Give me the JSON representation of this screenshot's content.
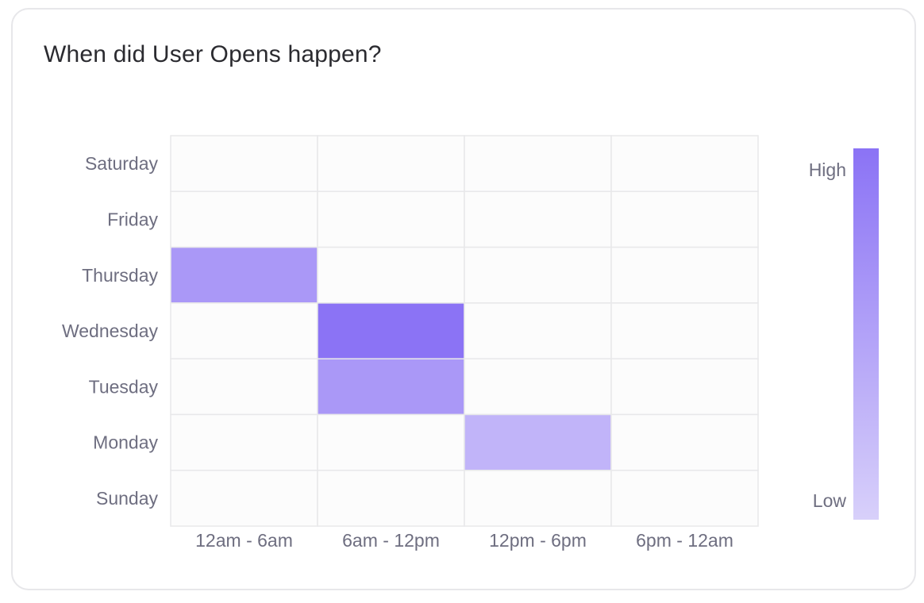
{
  "card": {
    "title": "When did User Opens happen?"
  },
  "chart_data": {
    "type": "heatmap",
    "title": "When did User Opens happen?",
    "x_categories": [
      "12am - 6am",
      "6am - 12pm",
      "12pm - 6pm",
      "6pm - 12am"
    ],
    "y_categories": [
      "Saturday",
      "Friday",
      "Thursday",
      "Wednesday",
      "Tuesday",
      "Monday",
      "Sunday"
    ],
    "values": [
      [
        0,
        0,
        0,
        0
      ],
      [
        0,
        0,
        0,
        0
      ],
      [
        0.6,
        0,
        0,
        0
      ],
      [
        0,
        1.0,
        0,
        0
      ],
      [
        0,
        0.6,
        0,
        0
      ],
      [
        0,
        0,
        0.3,
        0
      ],
      [
        0,
        0,
        0,
        0
      ]
    ],
    "legend": {
      "high_label": "High",
      "low_label": "Low",
      "placement": "right"
    },
    "colors": {
      "high": "#8b73f5",
      "low": "#d8d0fa",
      "empty_cell": "#fcfcfc",
      "grid_line": "#e8e8ea"
    },
    "grid": true
  }
}
